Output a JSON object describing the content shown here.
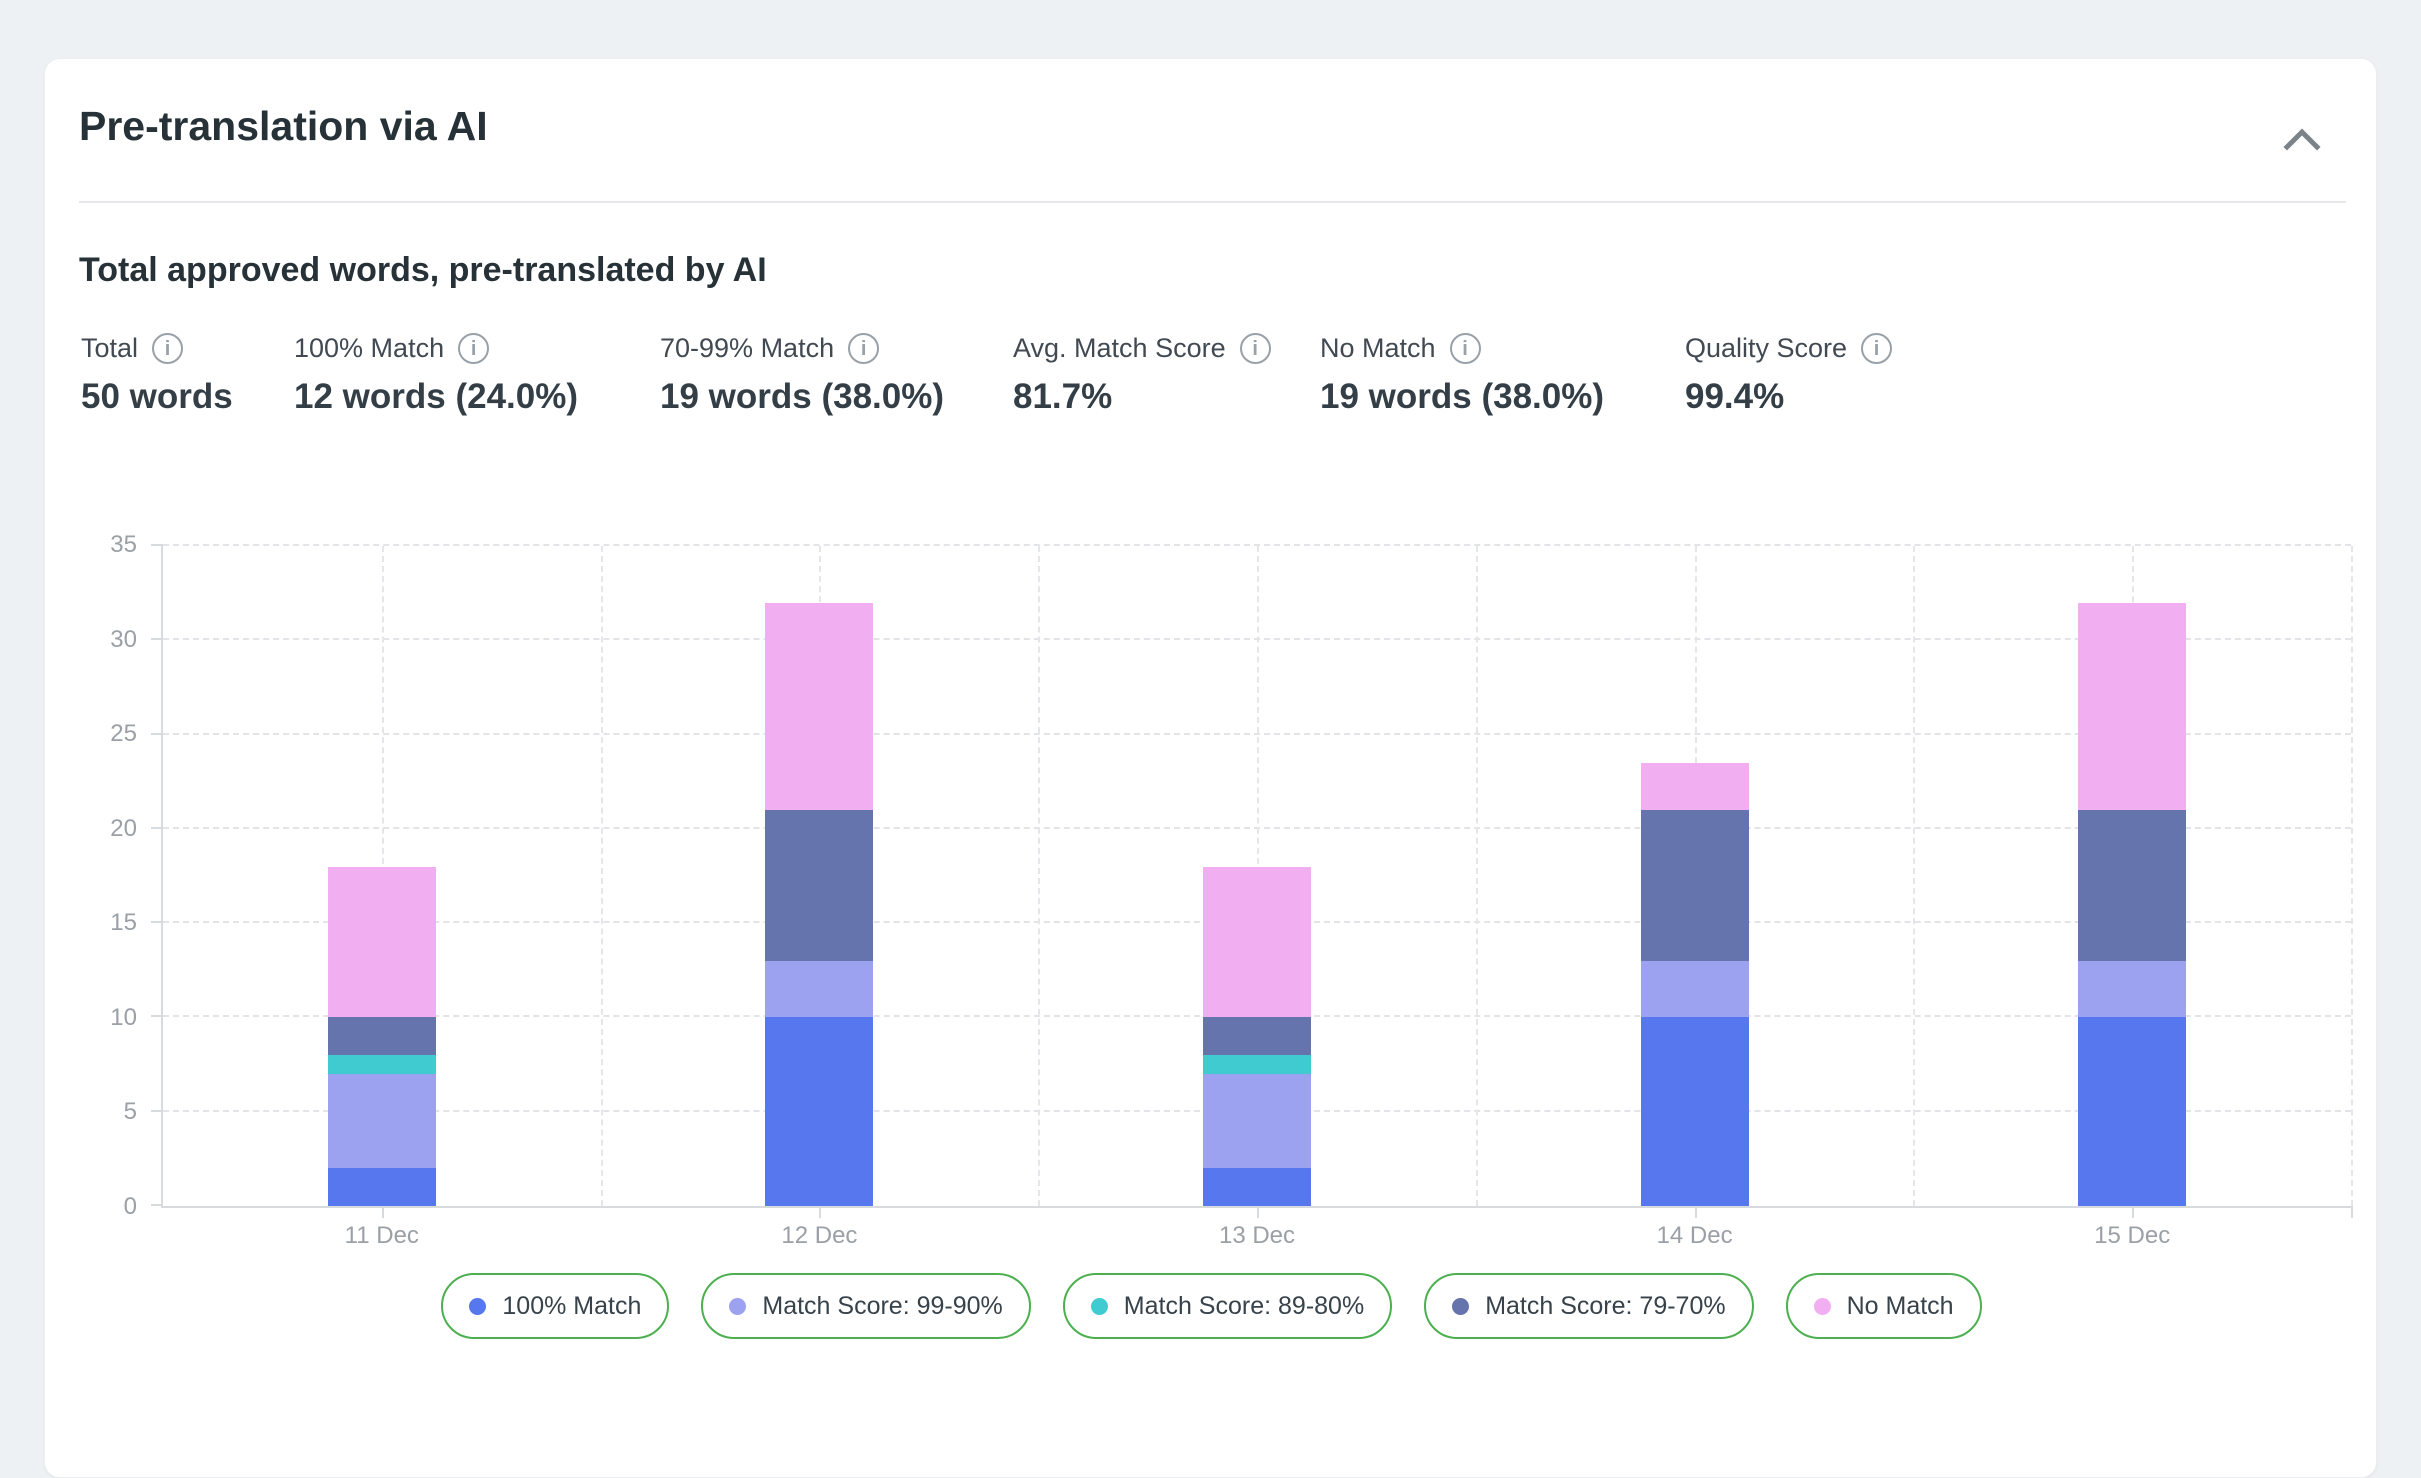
{
  "header": {
    "title": "Pre-translation via AI"
  },
  "section": {
    "title": "Total approved words, pre-translated by AI"
  },
  "stats": [
    {
      "label": "Total",
      "value": "50 words"
    },
    {
      "label": "100% Match",
      "value": "12 words (24.0%)"
    },
    {
      "label": "70-99% Match",
      "value": "19 words (38.0%)"
    },
    {
      "label": "Avg. Match Score",
      "value": "81.7%"
    },
    {
      "label": "No Match",
      "value": "19 words (38.0%)"
    },
    {
      "label": "Quality Score",
      "value": "99.4%"
    }
  ],
  "chart_data": {
    "type": "bar",
    "stacked": true,
    "title": "Total approved words, pre-translated by AI",
    "categories": [
      "11 Dec",
      "12 Dec",
      "13 Dec",
      "14 Dec",
      "15 Dec"
    ],
    "series": [
      {
        "name": "100% Match",
        "color": "#5677EE",
        "values": [
          2,
          10,
          2,
          10,
          10
        ]
      },
      {
        "name": "Match Score: 99-90%",
        "color": "#9CA1F0",
        "values": [
          5,
          3,
          5,
          3,
          3
        ]
      },
      {
        "name": "Match Score: 89-80%",
        "color": "#3FCBD0",
        "values": [
          1,
          0,
          1,
          0,
          0
        ]
      },
      {
        "name": "Match Score: 79-70%",
        "color": "#6674AE",
        "values": [
          2,
          8,
          2,
          8,
          8
        ]
      },
      {
        "name": "No Match",
        "color": "#F1AFF2",
        "values": [
          8,
          11,
          8,
          2.5,
          11
        ]
      }
    ],
    "ylim": [
      0,
      35
    ],
    "ytick_step": 5,
    "grid": "dashed",
    "legend_position": "bottom",
    "legend_border_color": "#4CAF50",
    "axis_text_color": "#9AA0A6"
  }
}
